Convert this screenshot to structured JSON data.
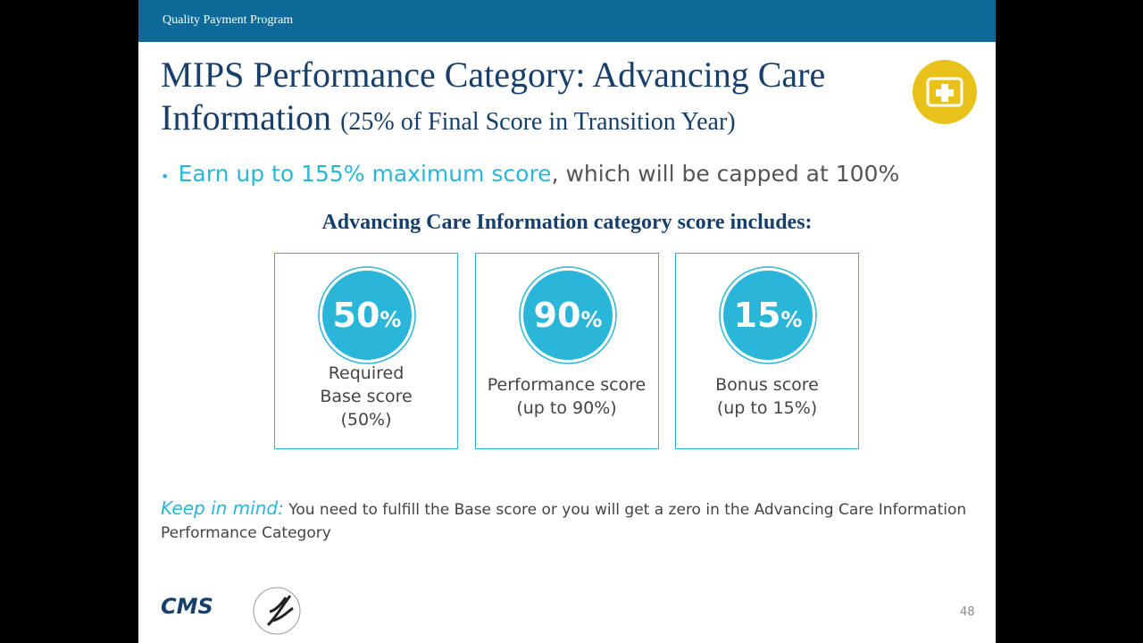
{
  "header": {
    "program": "Quality Payment Program"
  },
  "title": {
    "main": "MIPS Performance Category: Advancing Care Information",
    "sub": "(25% of Final Score in Transition Year)"
  },
  "bullet": {
    "highlight": "Earn up to 155% maximum score",
    "rest": ", which will be capped at 100%"
  },
  "subheading": "Advancing Care Information category score includes:",
  "cards": [
    {
      "number": "50",
      "unit": "%",
      "lines": [
        "Required",
        "Base score",
        "(50%)"
      ]
    },
    {
      "number": "90",
      "unit": "%",
      "lines": [
        "Performance score",
        "(up to 90%)"
      ]
    },
    {
      "number": "15",
      "unit": "%",
      "lines": [
        "Bonus score",
        "(up to 15%)"
      ]
    }
  ],
  "note": {
    "lead": "Keep in mind:",
    "text": " You need to fulfill the Base score or you will get a zero in the Advancing Care Information Performance Category"
  },
  "footer": {
    "logo": "CMS",
    "page_number": "48"
  }
}
